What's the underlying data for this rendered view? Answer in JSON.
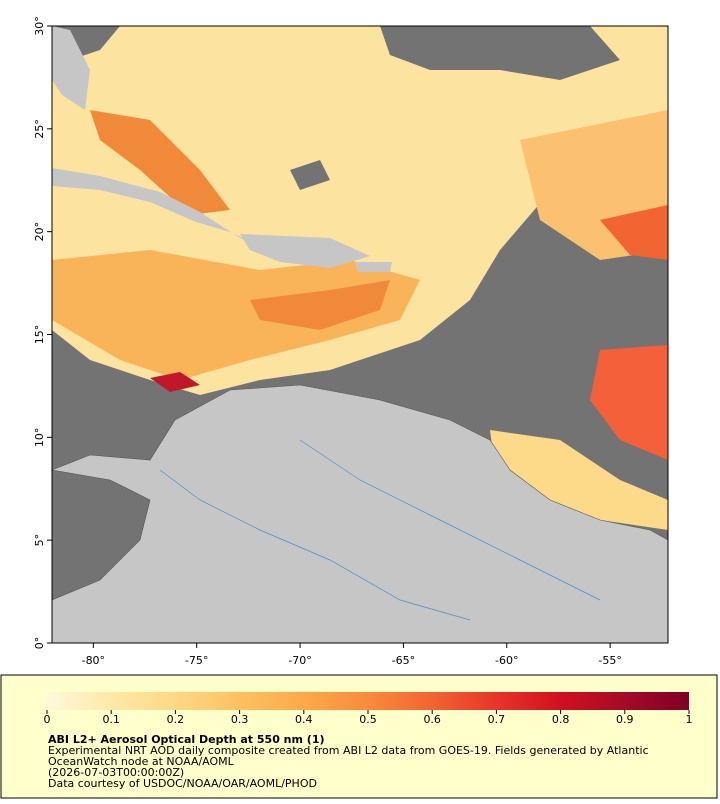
{
  "map": {
    "lon_range": [
      -82,
      -52.2
    ],
    "lat_range": [
      0,
      30
    ],
    "lon_ticks": [
      {
        "value": -80,
        "label": "-80°"
      },
      {
        "value": -75,
        "label": "-75°"
      },
      {
        "value": -70,
        "label": "-70°"
      },
      {
        "value": -65,
        "label": "-65°"
      },
      {
        "value": -60,
        "label": "-60°"
      },
      {
        "value": -55,
        "label": "-55°"
      }
    ],
    "lat_ticks": [
      {
        "value": 0,
        "label": "0°"
      },
      {
        "value": 5,
        "label": "5°"
      },
      {
        "value": 10,
        "label": "10°"
      },
      {
        "value": 15,
        "label": "15°"
      },
      {
        "value": 20,
        "label": "20°"
      },
      {
        "value": 25,
        "label": "25°"
      },
      {
        "value": 30,
        "label": "30°"
      }
    ]
  },
  "colorbar": {
    "range": [
      0,
      1
    ],
    "ticks": [
      0,
      0.1,
      0.2,
      0.3,
      0.4,
      0.5,
      0.6,
      0.7,
      0.8,
      0.9,
      1
    ],
    "colors": [
      "#fff8dc",
      "#fee9a8",
      "#fed885",
      "#fdc160",
      "#fca94a",
      "#f98b3c",
      "#f26432",
      "#e8352a",
      "#d11020",
      "#a50a28",
      "#800026"
    ]
  },
  "legend": {
    "title": "ABI L2+ Aerosol Optical Depth at 550 nm (1)",
    "lines": [
      "Experimental NRT AOD daily composite created from ABI L2 data from GOES-19. Fields generated by Atlantic",
      "OceanWatch node at NOAA/AOML",
      "(2026-07-03T00:00:00Z)",
      "Data courtesy of USDOC/NOAA/OAR/AOML/PHOD"
    ]
  }
}
